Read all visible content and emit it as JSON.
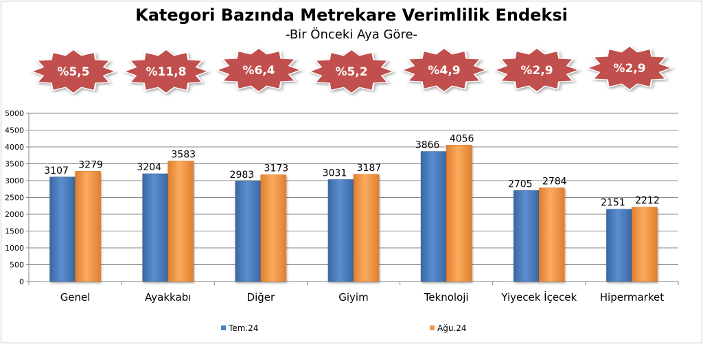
{
  "chart_data": {
    "type": "bar",
    "title": "Kategori Bazında Metrekare Verimlilik Endeksi",
    "subtitle": "-Bir Önceki Aya Göre-",
    "categories": [
      "Genel",
      "Ayakkabı",
      "Diğer",
      "Giyim",
      "Teknoloji",
      "Yiyecek İçecek",
      "Hipermarket"
    ],
    "series": [
      {
        "name": "Tem.24",
        "values": [
          3107,
          3204,
          2983,
          3031,
          3866,
          2705,
          2151
        ]
      },
      {
        "name": "Ağu.24",
        "values": [
          3279,
          3583,
          3173,
          3187,
          4056,
          2784,
          2212
        ]
      }
    ],
    "change_badges": [
      "%5,5",
      "%11,8",
      "%6,4",
      "%5,2",
      "%4,9",
      "%2,9",
      "%2,9"
    ],
    "ylim": [
      0,
      5000
    ],
    "yticks": [
      0,
      500,
      1000,
      1500,
      2000,
      2500,
      3000,
      3500,
      4000,
      4500,
      5000
    ],
    "xlabel": "",
    "ylabel": "",
    "grid": true,
    "legend_position": "bottom",
    "colors": {
      "series1": "#4f81bd",
      "series2": "#f79646",
      "badge": "#c0504d"
    }
  }
}
